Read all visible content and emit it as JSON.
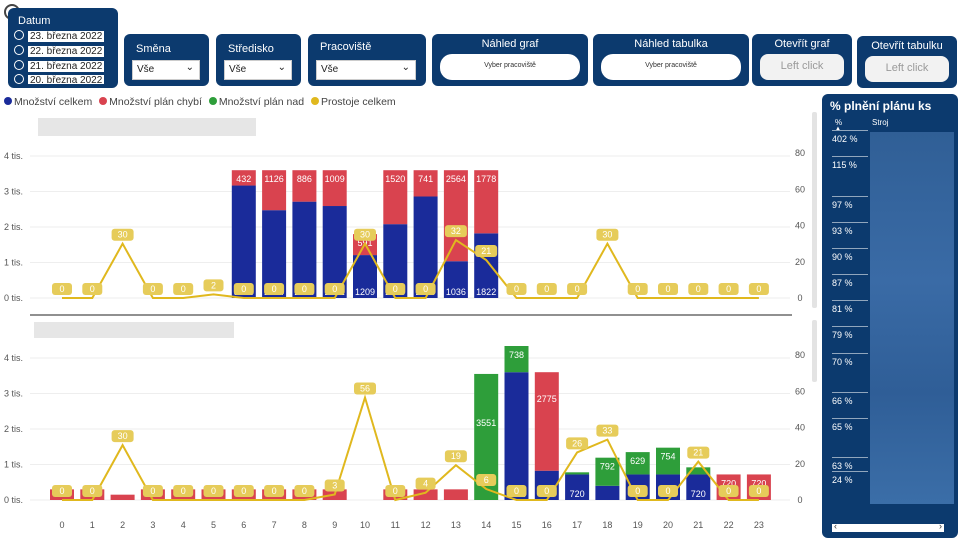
{
  "datum": {
    "title": "Datum",
    "items": [
      "23. března 2022",
      "22. března 2022",
      "21. března 2022",
      "20. března 2022"
    ]
  },
  "smena": {
    "title": "Směna",
    "value": "Vše"
  },
  "stredisko": {
    "title": "Středisko",
    "value": "Vše"
  },
  "pracoviste": {
    "title": "Pracoviště",
    "value": "Vše"
  },
  "nahled_graf": {
    "title": "Náhled graf",
    "pill": "Vyber pracoviště"
  },
  "nahled_tabulka": {
    "title": "Náhled tabulka",
    "pill": "Vyber pracoviště"
  },
  "otevrit_graf": {
    "title": "Otevřít graf",
    "button": "Left click"
  },
  "otevrit_tabulku": {
    "title": "Otevřít tabulku",
    "button": "Left click"
  },
  "legend": [
    {
      "label": "Množství celkem",
      "color": "#1a2b9a"
    },
    {
      "label": "Množství plán chybí",
      "color": "#d9434f"
    },
    {
      "label": "Množství plán nad",
      "color": "#2e9e3a"
    },
    {
      "label": "Prostoje celkem",
      "color": "#e0b81e"
    }
  ],
  "right_panel": {
    "title": "% plnění plánu ks",
    "col_pct": "%",
    "col_stroj": "Stroj",
    "values": [
      "402 %",
      "115 %",
      "97 %",
      "93 %",
      "90 %",
      "87 %",
      "81 %",
      "79 %",
      "70 %",
      "66 %",
      "65 %",
      "63 %",
      "24 %"
    ]
  },
  "chart_data": [
    {
      "type": "bar+line",
      "x": [
        0,
        1,
        2,
        3,
        4,
        5,
        6,
        7,
        8,
        9,
        10,
        11,
        12,
        13,
        14,
        15,
        16,
        17,
        18,
        19,
        20,
        21,
        22,
        23
      ],
      "y_left_ticks": [
        "0 tis.",
        "1 tis.",
        "2 tis.",
        "3 tis.",
        "4 tis."
      ],
      "y_right_ticks": [
        "0",
        "20",
        "40",
        "60",
        "80"
      ],
      "y_left_range": [
        0,
        4000
      ],
      "y_right_range": [
        0,
        80
      ],
      "series": [
        {
          "name": "Množství celkem",
          "values": [
            null,
            null,
            null,
            null,
            null,
            null,
            3168,
            2474,
            2714,
            2591,
            1209,
            2080,
            2859,
            1036,
            1822,
            null,
            null,
            null,
            null,
            null,
            null,
            null,
            null,
            null
          ]
        },
        {
          "name": "Množství plán chybí",
          "values": [
            null,
            null,
            null,
            null,
            null,
            null,
            432,
            1126,
            886,
            1009,
            591,
            1520,
            741,
            2564,
            1778,
            null,
            null,
            null,
            null,
            null,
            null,
            null,
            null,
            null
          ]
        },
        {
          "name": "Prostoje celkem",
          "values": [
            0,
            0,
            30,
            0,
            0,
            2,
            0,
            0,
            0,
            0,
            30,
            0,
            0,
            32,
            21,
            0,
            0,
            0,
            30,
            0,
            0,
            0,
            0,
            0
          ]
        }
      ]
    },
    {
      "type": "bar+line",
      "x": [
        0,
        1,
        2,
        3,
        4,
        5,
        6,
        7,
        8,
        9,
        10,
        11,
        12,
        13,
        14,
        15,
        16,
        17,
        18,
        19,
        20,
        21,
        22,
        23
      ],
      "y_left_ticks": [
        "0 tis.",
        "1 tis.",
        "2 tis.",
        "3 tis.",
        "4 tis."
      ],
      "y_right_ticks": [
        "0",
        "20",
        "40",
        "60",
        "80"
      ],
      "y_left_range": [
        0,
        4000
      ],
      "y_right_range": [
        0,
        80
      ],
      "series": [
        {
          "name": "Množství celkem",
          "values": [
            0,
            0,
            0,
            0,
            0,
            0,
            0,
            0,
            0,
            0,
            0,
            0,
            0,
            0,
            0,
            3600,
            825,
            720,
            400,
            720,
            720,
            720,
            0,
            0
          ]
        },
        {
          "name": "Množství plán chybí",
          "values": [
            300,
            300,
            150,
            300,
            300,
            300,
            300,
            300,
            300,
            300,
            0,
            300,
            300,
            300,
            0,
            null,
            2775,
            null,
            null,
            null,
            null,
            null,
            720,
            720
          ]
        },
        {
          "name": "Množství plán nad",
          "values": [
            null,
            null,
            null,
            null,
            null,
            null,
            null,
            null,
            null,
            null,
            null,
            null,
            null,
            null,
            3551,
            738,
            null,
            60,
            792,
            629,
            754,
            200,
            null,
            null
          ]
        },
        {
          "name": "Prostoje celkem",
          "values": [
            0,
            0,
            30,
            0,
            0,
            0,
            0,
            0,
            0,
            3,
            56,
            0,
            4,
            19,
            6,
            0,
            0,
            26,
            33,
            0,
            0,
            21,
            0,
            0
          ]
        }
      ],
      "bar_labels": {
        "celkem": [
          "",
          "",
          "",
          "",
          "",
          "",
          "",
          "",
          "",
          "",
          "",
          "",
          "",
          "",
          "",
          "3600",
          "825",
          "720",
          "",
          "720",
          "720",
          "720",
          "",
          ""
        ],
        "chybi": [
          "",
          "",
          "",
          "",
          "",
          "",
          "",
          "",
          "",
          "",
          "",
          "",
          "",
          "",
          "",
          "",
          "2775",
          "",
          "",
          "",
          "",
          "",
          "720",
          "720"
        ],
        "nad": [
          "",
          "",
          "",
          "",
          "",
          "",
          "",
          "",
          "",
          "",
          "",
          "",
          "",
          "",
          "3551",
          "738",
          "",
          "",
          "792",
          "629",
          "754",
          "",
          "",
          ""
        ]
      }
    }
  ]
}
